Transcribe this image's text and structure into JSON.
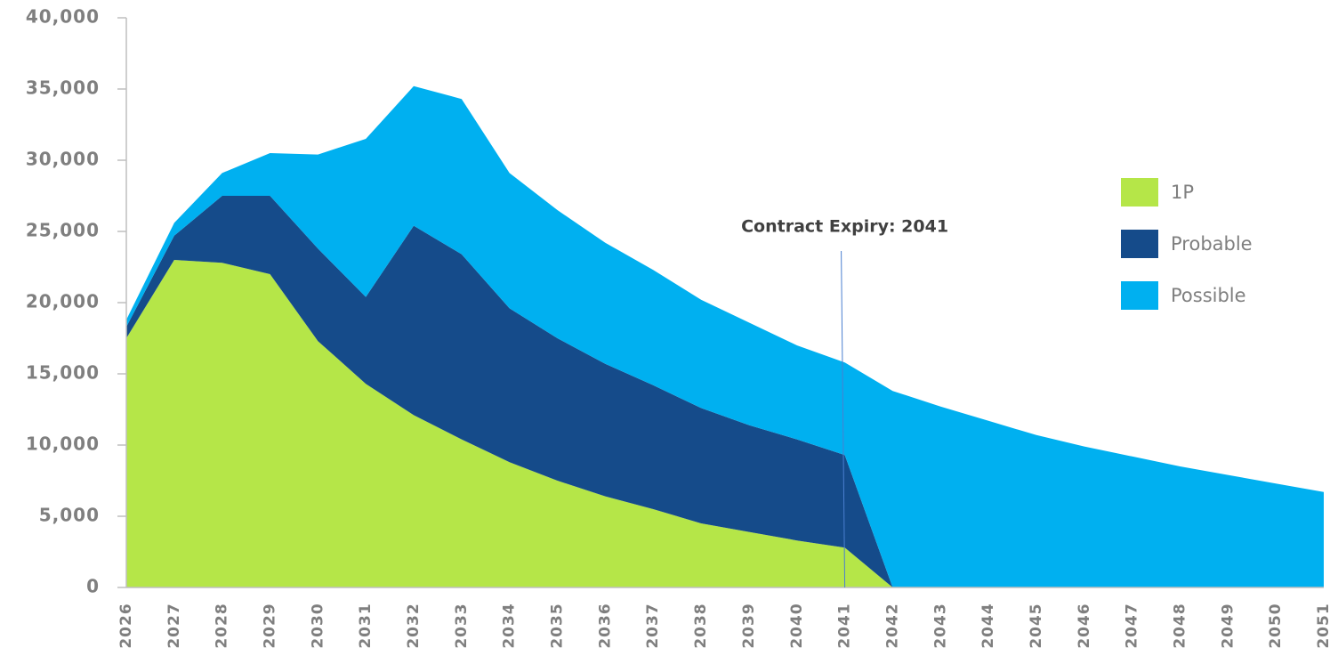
{
  "chart_data": {
    "type": "area",
    "categories": [
      "2026",
      "2027",
      "2028",
      "2029",
      "2030",
      "2031",
      "2032",
      "2033",
      "2034",
      "2035",
      "2036",
      "2037",
      "2038",
      "2039",
      "2040",
      "2041",
      "2042",
      "2043",
      "2044",
      "2045",
      "2046",
      "2047",
      "2048",
      "2049",
      "2050",
      "2051"
    ],
    "series": [
      {
        "name": "1P",
        "color": "#b5e648",
        "values": [
          17500,
          23000,
          22800,
          22000,
          17300,
          14300,
          12100,
          10400,
          8800,
          7500,
          6400,
          5500,
          4500,
          3900,
          3300,
          2800,
          0,
          0,
          0,
          0,
          0,
          0,
          0,
          0,
          0,
          0
        ]
      },
      {
        "name": "Probable",
        "color": "#154b8a",
        "values": [
          800,
          1700,
          4700,
          5500,
          6500,
          6100,
          13300,
          13000,
          10800,
          10000,
          9300,
          8700,
          8100,
          7500,
          7100,
          6500,
          0,
          0,
          0,
          0,
          0,
          0,
          0,
          0,
          0,
          0
        ]
      },
      {
        "name": "Possible",
        "color": "#00b0f0",
        "values": [
          500,
          900,
          1600,
          3000,
          6600,
          11100,
          9800,
          10900,
          9500,
          9000,
          8500,
          8100,
          7600,
          7200,
          6600,
          6500,
          13800,
          12700,
          11700,
          10700,
          9900,
          9200,
          8500,
          7900,
          7300,
          6700
        ]
      }
    ],
    "stacked": true,
    "ylim": [
      0,
      40000
    ],
    "yticks": [
      0,
      {
        "value": 5000,
        "label": "5,000"
      },
      {
        "value": 10000,
        "label": "10,000"
      },
      {
        "value": 15000,
        "label": "15,000"
      },
      {
        "value": 20000,
        "label": "20,000"
      },
      {
        "value": 25000,
        "label": "25,000"
      },
      {
        "value": 30000,
        "label": "30,000"
      },
      {
        "value": 35000,
        "label": "35,000"
      },
      {
        "value": 40000,
        "label": "40,000"
      }
    ],
    "annotation": {
      "text": "Contract Expiry: 2041",
      "x": "2041"
    },
    "legend": "right"
  }
}
